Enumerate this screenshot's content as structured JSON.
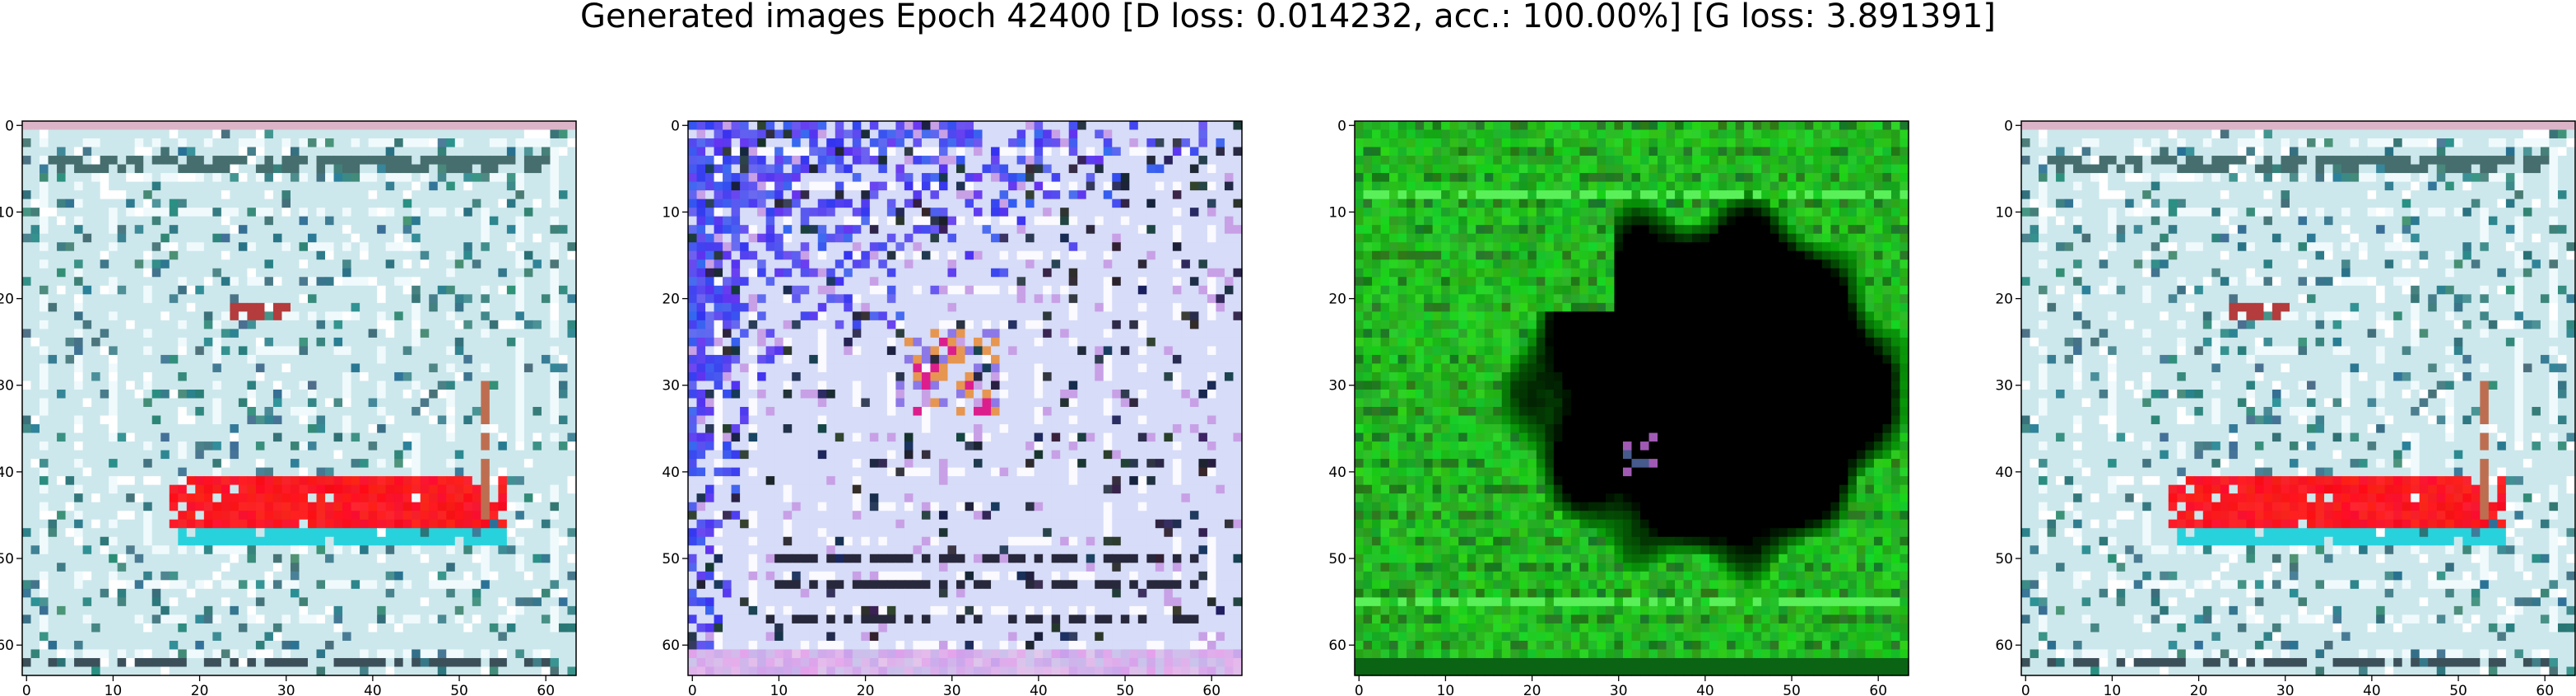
{
  "figure": {
    "title": "Generated images Epoch 42400 [D loss: 0.014232, acc.: 100.00%] [G loss: 3.891391]"
  },
  "axes": {
    "x_ticks": [
      "0",
      "10",
      "20",
      "30",
      "40",
      "50",
      "60"
    ],
    "y_ticks": [
      "0",
      "10",
      "20",
      "30",
      "40",
      "50",
      "60"
    ],
    "x_tick_values": [
      0,
      10,
      20,
      30,
      40,
      50,
      60
    ],
    "y_tick_values": [
      0,
      10,
      20,
      30,
      40,
      50,
      60
    ],
    "pixel_extent": [
      64,
      64
    ]
  },
  "panels": [
    {
      "name": "generated-image-1",
      "style": "cyan-white-red-stripe"
    },
    {
      "name": "generated-image-2",
      "style": "blue-white"
    },
    {
      "name": "generated-image-3",
      "style": "green-black-blob"
    },
    {
      "name": "generated-image-4",
      "style": "cyan-white-red-stripe"
    }
  ],
  "colors": {
    "pale_cyan": "#cde8ea",
    "teal": "#4a8e94",
    "red": "#ff1a1a",
    "blue": "#3a3aff",
    "green": "#14b414",
    "black": "#000000",
    "white": "#ffffff"
  }
}
